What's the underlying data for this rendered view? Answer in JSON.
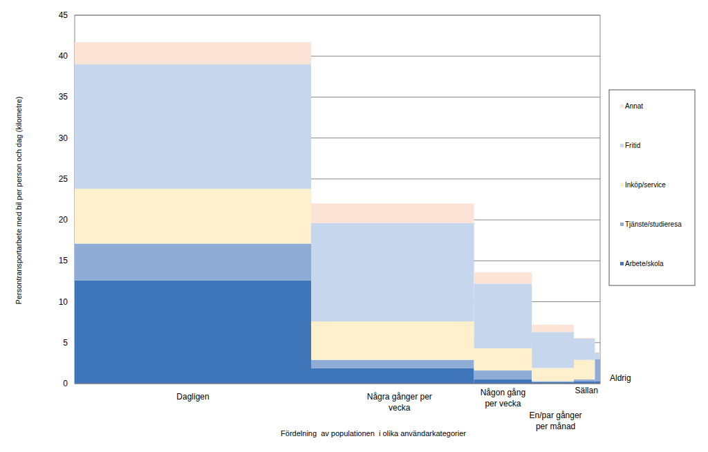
{
  "chart_data": {
    "type": "bar",
    "stacked": true,
    "grid": true,
    "legend": "right",
    "y_label": "Persontransportarbete med bil per person och dag (kilometre)",
    "x_label": "Fördelning  av populationen  i olika användarkategorier",
    "categories": [
      "Dagligen",
      "Några gånger per vecka",
      "Någon gång per vecka",
      "En/par gånger per månad",
      "Sällan",
      "Aldrig"
    ],
    "widths": [
      45,
      31,
      11,
      8,
      4,
      1
    ],
    "xlim": [
      0,
      100
    ],
    "tick_labels": "y",
    "ylim": [
      0,
      45
    ],
    "yticks": [
      0,
      5,
      10,
      15,
      20,
      25,
      30,
      35,
      40,
      45
    ],
    "series": [
      {
        "name": "Arbete/skola",
        "color": "#3f75b9",
        "values": [
          12.6,
          1.9,
          0.5,
          0.2,
          0.3,
          0.3
        ]
      },
      {
        "name": "Tjänste/studieresa",
        "color": "#8eacd5",
        "values": [
          4.5,
          1.0,
          1.1,
          0.1,
          0.2,
          2.7
        ]
      },
      {
        "name": "Inköp/service",
        "color": "#fef0cc",
        "values": [
          6.7,
          4.7,
          2.7,
          1.6,
          2.4,
          0
        ]
      },
      {
        "name": "Fritid",
        "color": "#c6d6ec",
        "values": [
          15.2,
          12.0,
          7.9,
          4.4,
          2.6,
          0.8
        ]
      },
      {
        "name": "Annat",
        "color": "#fbe3d5",
        "values": [
          2.7,
          2.4,
          1.4,
          0.9,
          0.1,
          0
        ]
      }
    ]
  }
}
